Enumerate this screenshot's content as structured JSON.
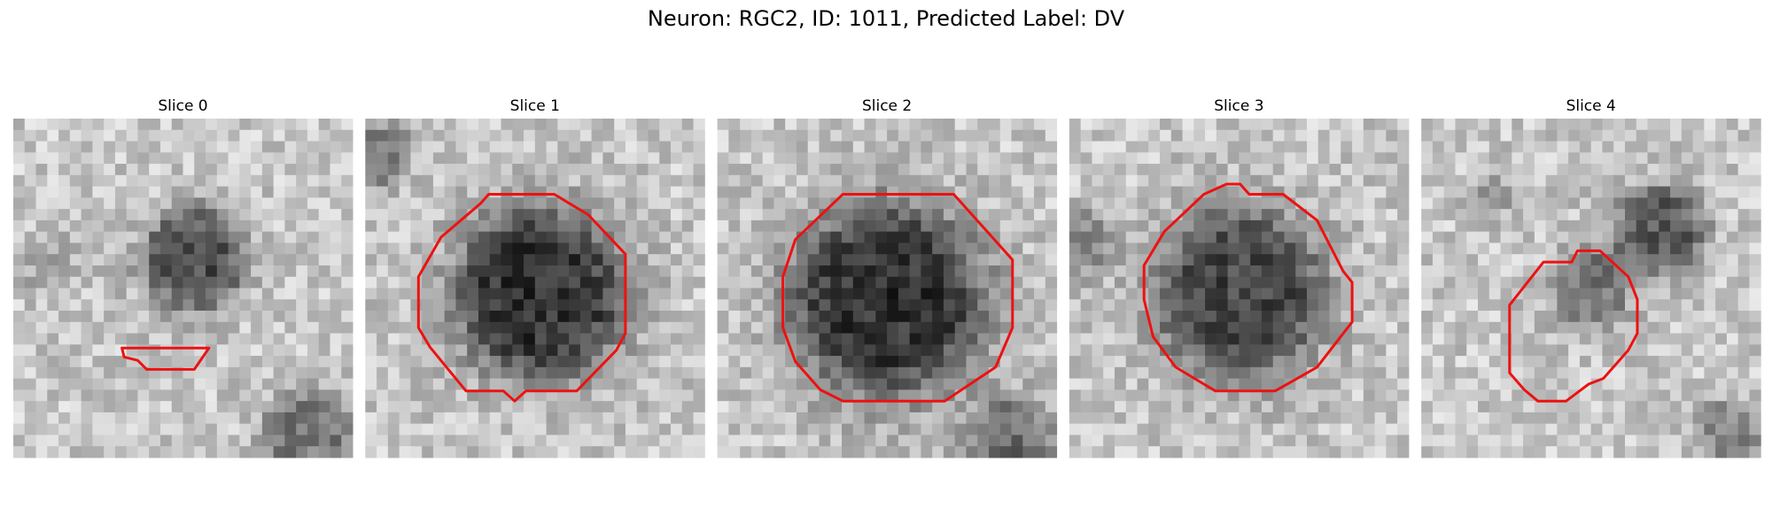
{
  "title": "Neuron: RGC2, ID: 1011, Predicted Label: DV",
  "panels": [
    {
      "title": "Slice 0"
    },
    {
      "title": "Slice 1"
    },
    {
      "title": "Slice 2"
    },
    {
      "title": "Slice 3"
    },
    {
      "title": "Slice 4"
    }
  ]
}
